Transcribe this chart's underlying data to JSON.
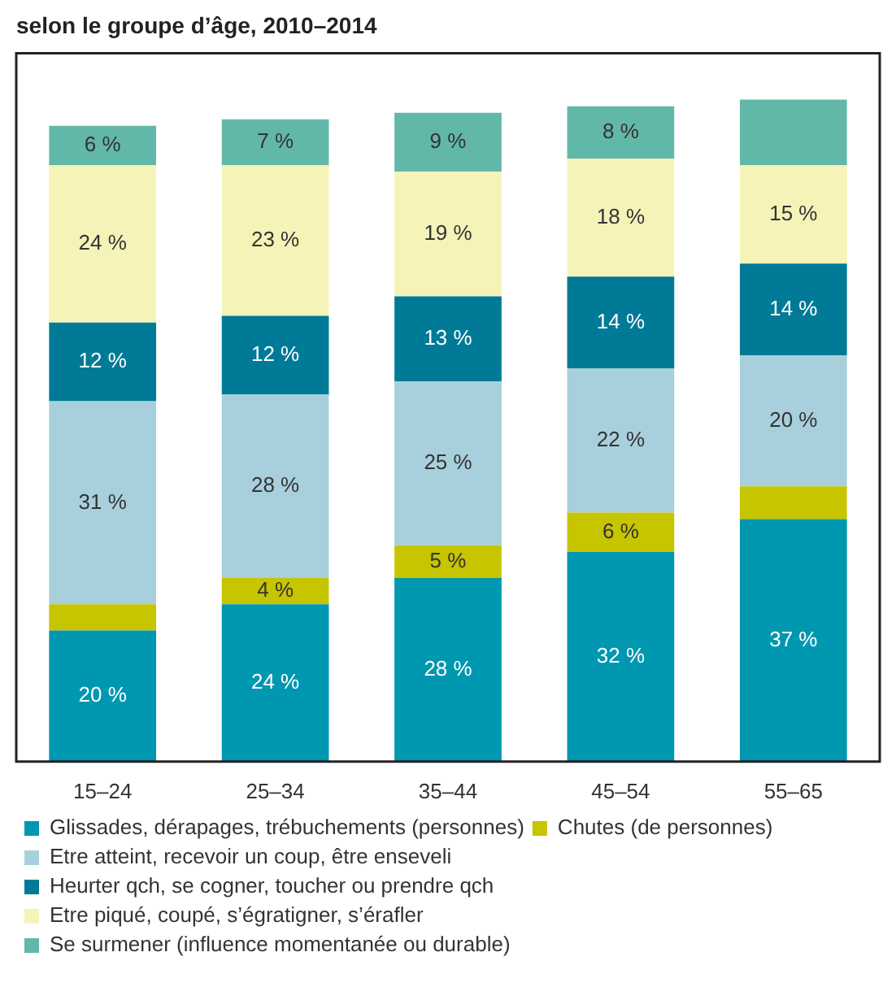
{
  "chart_data": {
    "type": "bar",
    "title": "selon le groupe d’âge, 2010–2014",
    "stacked": true,
    "legend": "bottom",
    "tick_labels": "x",
    "categories": [
      "15–24",
      "25–34",
      "35–44",
      "45–54",
      "55–65"
    ],
    "series": [
      {
        "name": "Glissades, dérapages, trébuchements (personnes)",
        "color": "#0097b0",
        "values": [
          20,
          24,
          28,
          32,
          37
        ],
        "value_labels": [
          "20 %",
          "24 %",
          "28 %",
          "32 %",
          "37 %"
        ]
      },
      {
        "name": "Chutes (de personnes)",
        "color": "#c7c400",
        "values": [
          4,
          4,
          5,
          6,
          5
        ],
        "value_labels": [
          null,
          "4 %",
          "5 %",
          "6 %",
          null
        ]
      },
      {
        "name": "Etre atteint, recevoir un coup, être enseveli",
        "color": "#a8d0dc",
        "values": [
          31,
          28,
          25,
          22,
          20
        ],
        "value_labels": [
          "31 %",
          "28 %",
          "25 %",
          "22 %",
          "20 %"
        ]
      },
      {
        "name": "Heurter qch, se cogner, toucher ou prendre qch",
        "color": "#007a96",
        "values": [
          12,
          12,
          13,
          14,
          14
        ],
        "value_labels": [
          "12 %",
          "12 %",
          "13 %",
          "14 %",
          "14 %"
        ]
      },
      {
        "name": "Etre piqué, coupé, s’égratigner, s’érafler",
        "color": "#f5f3b8",
        "values": [
          24,
          23,
          19,
          18,
          15
        ],
        "value_labels": [
          "24 %",
          "23 %",
          "19 %",
          "18 %",
          "15 %"
        ]
      },
      {
        "name": "Se surmener (influence momentanée ou durable)",
        "color": "#62b8a8",
        "values": [
          6,
          7,
          9,
          8,
          10
        ],
        "value_labels": [
          "6 %",
          "7 %",
          "9 %",
          "8 %",
          null
        ]
      }
    ]
  }
}
